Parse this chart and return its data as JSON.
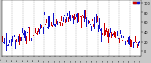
{
  "num_days": 365,
  "y_min": -10,
  "y_max": 105,
  "y_ticks": [
    0,
    20,
    40,
    60,
    80,
    100
  ],
  "background_color": "#c8c8c8",
  "plot_bg_color": "#ffffff",
  "grid_color": "#888888",
  "bar_color_above": "#cc0000",
  "bar_color_below": "#1111cc",
  "num_gridlines": 12,
  "seed": 42,
  "bar_width": 0.9,
  "base_min": 18,
  "base_amp": 52,
  "noise_std": 9
}
